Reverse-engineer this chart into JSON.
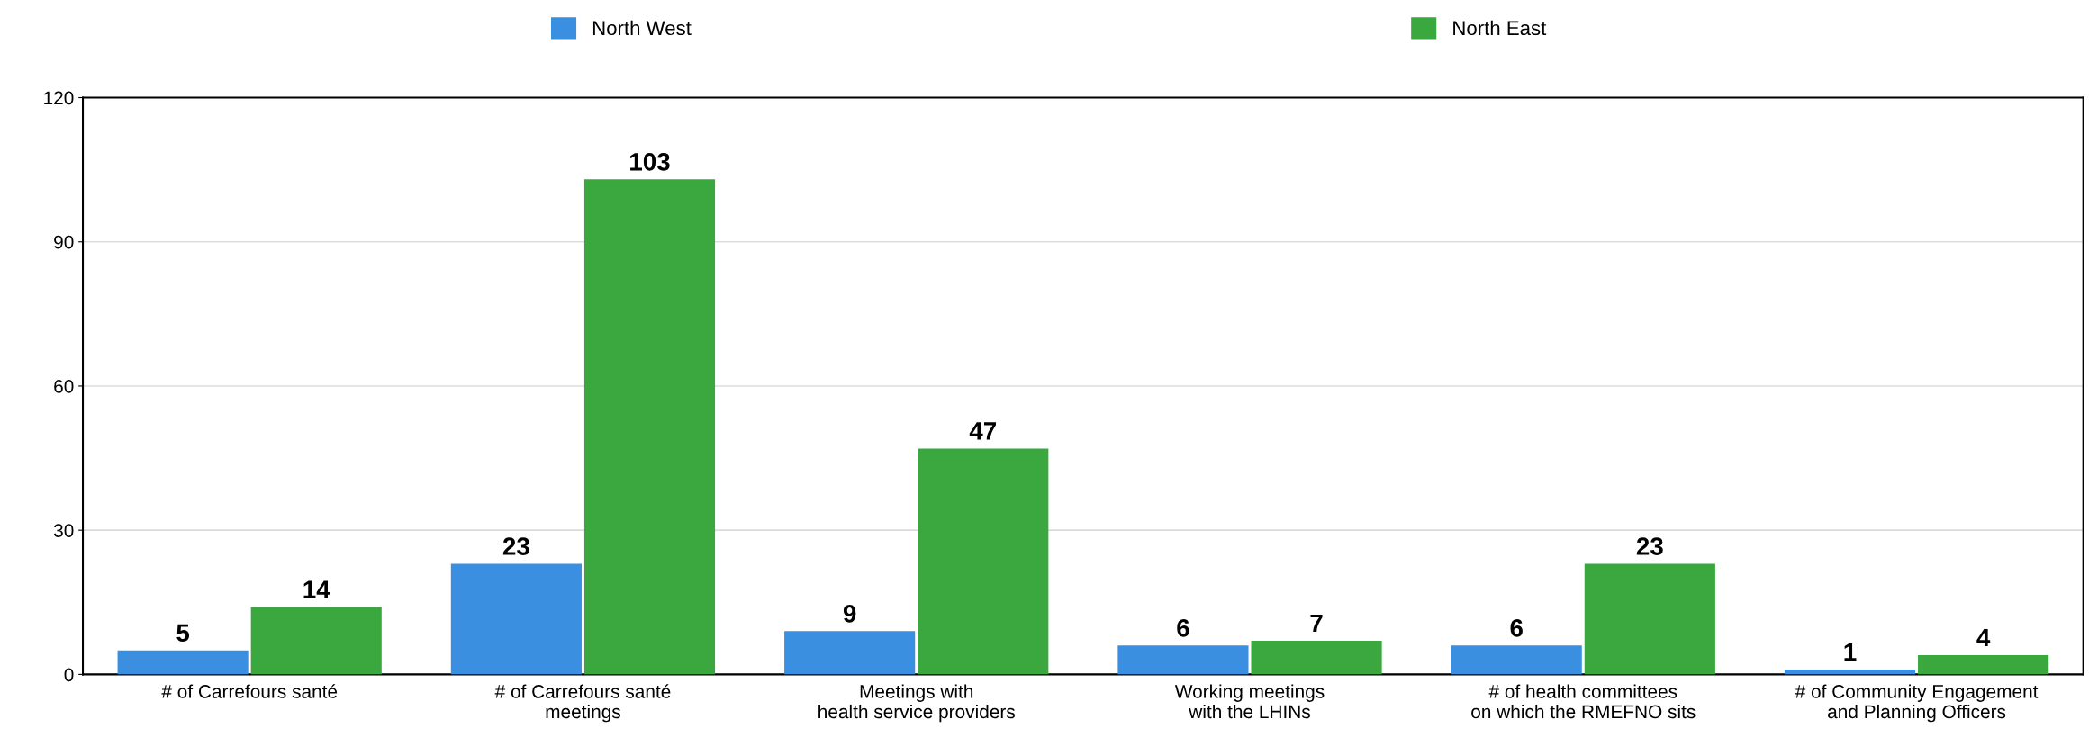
{
  "chart_data": {
    "type": "bar",
    "categories": [
      "# of Carrefours santé",
      "# of Carrefours santé\nmeetings",
      "Meetings with\nhealth service providers",
      "Working meetings\nwith the LHINs",
      "# of health committees\non which the RMEFNO sits",
      "# of Community Engagement\nand Planning Officers"
    ],
    "series": [
      {
        "name": "North West",
        "color": "#3a8fe0",
        "values": [
          5,
          23,
          9,
          6,
          6,
          1
        ]
      },
      {
        "name": "North East",
        "color": "#3aa83e",
        "values": [
          14,
          103,
          47,
          7,
          23,
          4
        ]
      }
    ],
    "ylim": [
      0,
      120
    ],
    "yticks": [
      0,
      30,
      60,
      90,
      120
    ],
    "grid": "y",
    "legend": "top",
    "data_labels": true
  }
}
